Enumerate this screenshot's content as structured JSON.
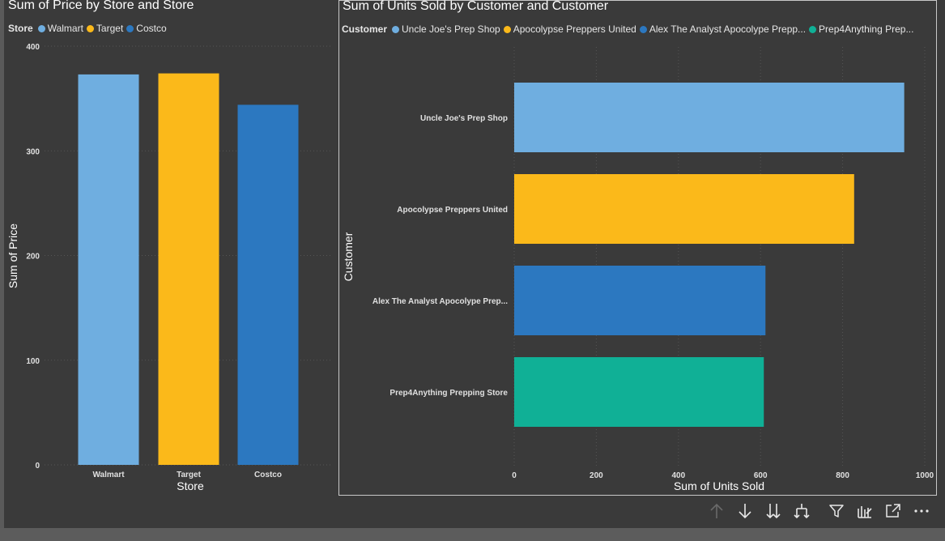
{
  "colors": {
    "background": "#3a3a3a",
    "axis_text": "#e0e0e0",
    "gridline": "#555555",
    "walmart": "#6faee0",
    "target": "#fbb91a",
    "costco": "#2c78c0",
    "prep4anything": "#10b096"
  },
  "chart_data": [
    {
      "type": "bar",
      "title": "Sum of Price by Store and Store",
      "legend": {
        "title": "Store",
        "items": [
          {
            "label": "Walmart",
            "color": "#6faee0"
          },
          {
            "label": "Target",
            "color": "#fbb91a"
          },
          {
            "label": "Costco",
            "color": "#2c78c0"
          }
        ]
      },
      "categories": [
        "Walmart",
        "Target",
        "Costco"
      ],
      "values": [
        373,
        374,
        344
      ],
      "colors": [
        "#6faee0",
        "#fbb91a",
        "#2c78c0"
      ],
      "xlabel": "Store",
      "ylabel": "Sum of Price",
      "ylim": [
        0,
        400
      ],
      "yticks": [
        "0",
        "100",
        "200",
        "300",
        "400"
      ],
      "grid": true
    },
    {
      "type": "bar",
      "orientation": "horizontal",
      "title": "Sum of Units Sold by Customer and Customer",
      "legend": {
        "title": "Customer",
        "items": [
          {
            "label": "Uncle Joe's Prep Shop",
            "color": "#6faee0"
          },
          {
            "label": "Apocolypse Preppers United",
            "color": "#fbb91a"
          },
          {
            "label": "Alex The Analyst Apocolype Prepp...",
            "color": "#2c78c0"
          },
          {
            "label": "Prep4Anything Prep...",
            "color": "#10b096"
          }
        ]
      },
      "categories": [
        "Uncle Joe's Prep Shop",
        "Apocolypse Preppers United",
        "Alex The Analyst Apocolype Prep...",
        "Prep4Anything Prepping Store"
      ],
      "values": [
        950,
        828,
        612,
        608
      ],
      "colors": [
        "#6faee0",
        "#fbb91a",
        "#2c78c0",
        "#10b096"
      ],
      "xlabel": "Sum of Units Sold",
      "ylabel": "Customer",
      "xlim": [
        0,
        1000
      ],
      "xticks": [
        "0",
        "200",
        "400",
        "600",
        "800",
        "1000"
      ],
      "grid": true
    }
  ],
  "toolbar": [
    {
      "icon": "arrow-up-icon",
      "enabled": false
    },
    {
      "icon": "arrow-down-icon",
      "enabled": true
    },
    {
      "icon": "double-arrow-down-icon",
      "enabled": true
    },
    {
      "icon": "expand-hierarchy-icon",
      "enabled": true
    },
    {
      "icon": "filter-icon",
      "enabled": true
    },
    {
      "icon": "spotlight-icon",
      "enabled": true
    },
    {
      "icon": "focus-mode-icon",
      "enabled": true
    },
    {
      "icon": "more-options-icon",
      "enabled": true
    }
  ]
}
